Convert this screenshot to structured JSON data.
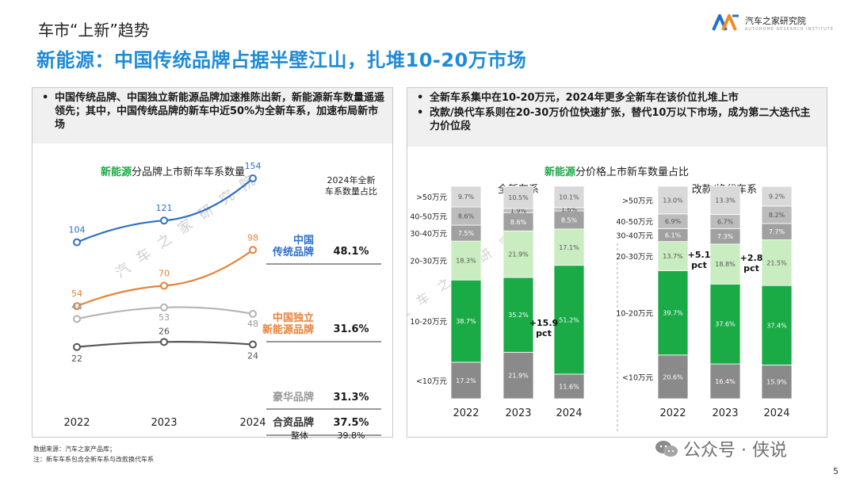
{
  "header": {
    "supertitle": "车市“上新”趋势",
    "headline": "新能源：中国传统品牌占据半壁江山，扎堆10-20万市场",
    "brand_name": "汽车之家研究院",
    "brand_sub": "AUTOHOME RESEARCH INSTITUTE"
  },
  "left_panel": {
    "bullets": [
      "中国传统品牌、中国独立新能源品牌加速推陈出新，新能源新车数量遥遥领先；其中，中国传统品牌的新车中近50%为全新车系，加速布局新市场"
    ]
  },
  "right_panel": {
    "bullets": [
      "全新车系集中在10-20万元，2024年更多全新车在该价位扎堆上市",
      "改款/换代车系则在20-30万价位快速扩张，替代10万以下市场，成为第二大迭代主力价位段"
    ]
  },
  "chart_data": [
    {
      "type": "line",
      "title_highlight": "新能源",
      "title": "分品牌上市新车车系数量",
      "x": [
        "2022",
        "2023",
        "2024"
      ],
      "ylim": [
        0,
        170
      ],
      "side_header": "2024年全新\n车系数量占比",
      "series": [
        {
          "name": "中国\n传统品牌",
          "values": [
            104,
            121,
            154
          ],
          "color": "#2e6fc7",
          "share": "48.1%"
        },
        {
          "name": "中国独立\n新能源品牌",
          "values": [
            54,
            70,
            98
          ],
          "color": "#e8823a",
          "share": "31.6%"
        },
        {
          "name": "豪华品牌",
          "values": [
            44,
            53,
            48
          ],
          "color": "#b5b5b5",
          "share": "31.3%"
        },
        {
          "name": "合资品牌",
          "values": [
            22,
            26,
            24
          ],
          "color": "#555555",
          "share": "37.5%"
        }
      ],
      "overall_label": "整体",
      "overall_share": "39.8%"
    },
    {
      "type": "bar",
      "stacked": true,
      "title_highlight": "新能源",
      "title": "分价格上市新车数量占比",
      "price_bands": [
        "<10万元",
        "10-20万元",
        "20-30万元",
        "30-40万元",
        "40-50万元",
        ">50万元"
      ],
      "band_colors": [
        "#8a8a8a",
        "#1aaa46",
        "#c9ecc1",
        "#a0a0a0",
        "#bcbcbc",
        "#d9d9d9"
      ],
      "groups": [
        {
          "name": "全新车系",
          "x": [
            "2022",
            "2023",
            "2024"
          ],
          "series": [
            {
              "band": "<10万元",
              "values": [
                17.2,
                21.9,
                11.6
              ]
            },
            {
              "band": "10-20万元",
              "values": [
                38.7,
                35.2,
                51.2
              ]
            },
            {
              "band": "20-30万元",
              "values": [
                18.3,
                21.9,
                17.1
              ]
            },
            {
              "band": "30-40万元",
              "values": [
                7.5,
                8.6,
                8.5
              ]
            },
            {
              "band": "40-50万元",
              "values": [
                8.6,
                1.9,
                1.6
              ]
            },
            {
              "band": ">50万元",
              "values": [
                9.7,
                10.5,
                10.1
              ]
            }
          ],
          "annotation": {
            "text": "+15.9\npct",
            "between": [
              "2023",
              "2024"
            ]
          }
        },
        {
          "name": "改款/换代车系",
          "x": [
            "2022",
            "2023",
            "2024"
          ],
          "series": [
            {
              "band": "<10万元",
              "values": [
                20.6,
                16.4,
                15.9
              ]
            },
            {
              "band": "10-20万元",
              "values": [
                39.7,
                37.6,
                37.4
              ]
            },
            {
              "band": "20-30万元",
              "values": [
                13.7,
                18.8,
                21.5
              ]
            },
            {
              "band": "30-40万元",
              "values": [
                6.1,
                7.3,
                7.7
              ]
            },
            {
              "band": "40-50万元",
              "values": [
                6.9,
                6.7,
                8.2
              ]
            },
            {
              "band": ">50万元",
              "values": [
                13.0,
                13.3,
                9.2
              ]
            }
          ],
          "annotations": [
            {
              "text": "+5.1\npct",
              "between": [
                "2022",
                "2023"
              ]
            },
            {
              "text": "+2.8\npct",
              "between": [
                "2023",
                "2024"
              ]
            }
          ]
        }
      ]
    }
  ],
  "watermark": "汽车之家研究院",
  "footnotes": [
    "数据来源：汽车之家产品库；",
    "注：新车车系包含全新车系与改款换代车系"
  ],
  "wechat_label": "公众号 · 侠说",
  "page_number": "5"
}
